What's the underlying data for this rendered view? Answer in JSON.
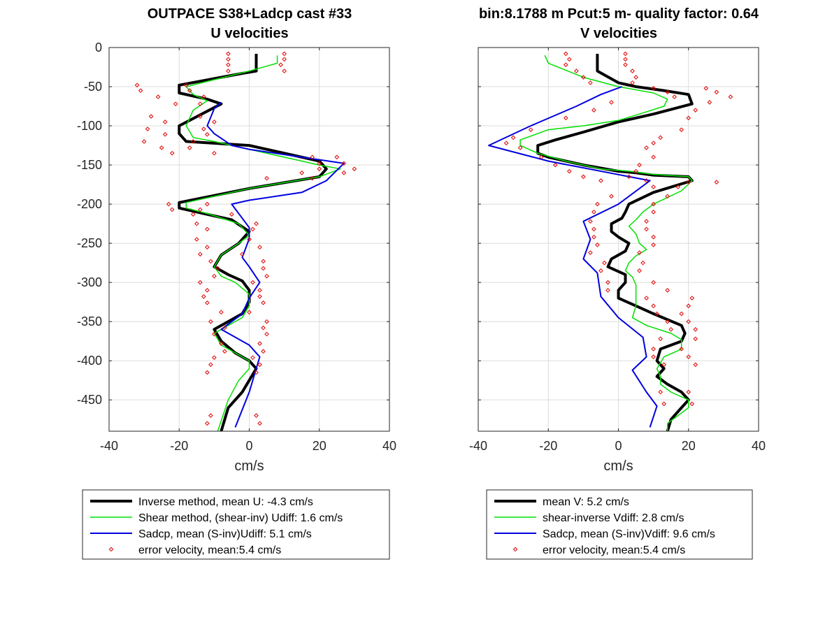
{
  "chart_data": [
    {
      "type": "line",
      "title": "OUTPACE S38+Ladcp cast #33",
      "subtitle": "U velocities",
      "xlabel": "cm/s",
      "ylabel": "",
      "xlim": [
        -40,
        40
      ],
      "ylim": [
        -490,
        0
      ],
      "xticks": [
        "-40",
        "-20",
        "0",
        "20",
        "40"
      ],
      "yticks": [
        "0",
        "-50",
        "-100",
        "-150",
        "-200",
        "-250",
        "-300",
        "-350",
        "-400",
        "-450"
      ],
      "grid": true,
      "legend_position": "below",
      "series": [
        {
          "name": "Inverse method, mean U:  -4.3 cm/s",
          "color": "#000000",
          "x": [
            2,
            2,
            -2,
            -20,
            -20,
            -12,
            -8,
            -20,
            -20,
            -18,
            0,
            20,
            22,
            20,
            0,
            -20,
            -20,
            -15,
            -5,
            0,
            -3,
            -8,
            -10,
            -6,
            -2,
            0,
            0,
            -2,
            -6,
            -10,
            -8,
            -4,
            0,
            2,
            0,
            -2,
            -6,
            -8
          ],
          "y": [
            -8,
            -30,
            -33,
            -48,
            -58,
            -66,
            -72,
            -100,
            -110,
            -120,
            -125,
            -145,
            -155,
            -165,
            -180,
            -198,
            -205,
            -210,
            -220,
            -235,
            -250,
            -265,
            -280,
            -290,
            -298,
            -310,
            -325,
            -340,
            -350,
            -360,
            -375,
            -390,
            -400,
            -410,
            -425,
            -440,
            -460,
            -490
          ]
        },
        {
          "name": "Shear method, (shear-inv)  Udiff:  1.6 cm/s",
          "color": "#00e000",
          "x": [
            8,
            8,
            0,
            -18,
            -16,
            -12,
            -16,
            -18,
            -16,
            -10,
            0,
            20,
            26,
            20,
            0,
            -18,
            -18,
            -12,
            -3,
            0,
            -3,
            -8,
            -10,
            -8,
            -4,
            0,
            0,
            -2,
            -6,
            -10,
            -8,
            -4,
            0,
            0,
            -3,
            -6,
            -9
          ],
          "y": [
            -10,
            -20,
            -30,
            -50,
            -60,
            -68,
            -80,
            -100,
            -115,
            -120,
            -130,
            -150,
            -155,
            -165,
            -180,
            -198,
            -205,
            -212,
            -225,
            -240,
            -250,
            -265,
            -280,
            -292,
            -300,
            -315,
            -330,
            -345,
            -355,
            -365,
            -380,
            -390,
            -400,
            -410,
            -425,
            -450,
            -490
          ]
        },
        {
          "name": "Sadcp, mean (S-inv)Udiff: 5.1 cm/s",
          "color": "#0000e0",
          "x": [
            -8,
            -10,
            -12,
            -10,
            -5,
            0,
            27,
            22,
            15,
            0,
            -5,
            0,
            0,
            -2,
            0,
            3,
            0,
            -2,
            -8,
            0,
            3,
            0,
            -4
          ],
          "y": [
            -70,
            -78,
            -100,
            -110,
            -125,
            -130,
            -148,
            -170,
            -185,
            -195,
            -200,
            -230,
            -244,
            -268,
            -280,
            -300,
            -320,
            -340,
            -360,
            -380,
            -395,
            -440,
            -485
          ]
        },
        {
          "name": "error velocity, mean:5.4 cm/s",
          "color": "#e00000",
          "marker": "diamond",
          "x": [
            -6,
            10,
            -6,
            10,
            -6,
            9,
            -6,
            10,
            -32,
            -18,
            -31,
            -17,
            -26,
            -13,
            -21,
            -14,
            -28,
            -14,
            -24,
            -10,
            -29,
            -13,
            -24,
            -12,
            -30,
            -16,
            -25,
            -17,
            -22,
            -10,
            25,
            18,
            27,
            20,
            30,
            20,
            27,
            15,
            18,
            5,
            -23,
            -12,
            -22,
            -14,
            -16,
            -5,
            -15,
            2,
            -12,
            1,
            -15,
            0,
            -12,
            3,
            -14,
            -2,
            -11,
            4,
            -9,
            4,
            -10,
            5,
            -14,
            1,
            -12,
            3,
            -13,
            3,
            -12,
            4,
            -8,
            0,
            -11,
            5,
            -7,
            4,
            -10,
            5,
            -8,
            3,
            -7,
            4,
            -10,
            1,
            -11,
            3,
            -12,
            2,
            -11,
            2,
            -12,
            3
          ],
          "y": [
            -8,
            -8,
            -15,
            -15,
            -22,
            -22,
            -30,
            -30,
            -48,
            -48,
            -55,
            -55,
            -63,
            -63,
            -72,
            -72,
            -88,
            -88,
            -95,
            -95,
            -104,
            -104,
            -111,
            -111,
            -120,
            -120,
            -128,
            -128,
            -135,
            -135,
            -140,
            -140,
            -148,
            -148,
            -155,
            -155,
            -160,
            -160,
            -167,
            -167,
            -200,
            -200,
            -207,
            -207,
            -213,
            -213,
            -225,
            -225,
            -232,
            -232,
            -245,
            -245,
            -255,
            -255,
            -264,
            -264,
            -273,
            -273,
            -282,
            -282,
            -292,
            -292,
            -300,
            -300,
            -310,
            -310,
            -318,
            -318,
            -326,
            -326,
            -338,
            -338,
            -350,
            -350,
            -358,
            -358,
            -366,
            -366,
            -378,
            -378,
            -388,
            -388,
            -396,
            -396,
            -405,
            -405,
            -415,
            -415,
            -470,
            -470,
            -480,
            -480
          ]
        }
      ]
    },
    {
      "type": "line",
      "title": "bin:8.1788 m  Pcut:5 m- quality factor:  0.64",
      "subtitle": "V velocities",
      "xlabel": "cm/s",
      "ylabel": "",
      "xlim": [
        -40,
        40
      ],
      "ylim": [
        -490,
        0
      ],
      "xticks": [
        "-40",
        "-20",
        "0",
        "20",
        "40"
      ],
      "yticks": [],
      "grid": true,
      "legend_position": "below",
      "series": [
        {
          "name": "mean V:  5.2 cm/s",
          "color": "#000000",
          "x": [
            -6,
            -6,
            0,
            5,
            13,
            20,
            21,
            10,
            0,
            -10,
            -18,
            -23,
            -23,
            -20,
            -10,
            0,
            5,
            10,
            20,
            21,
            10,
            3,
            2,
            1,
            -2,
            -2,
            0,
            3,
            2,
            -2,
            -3,
            2,
            2,
            0,
            0,
            5,
            10,
            18,
            19,
            18,
            12,
            11,
            13,
            11,
            14,
            18,
            20,
            18,
            15,
            14
          ],
          "y": [
            -8,
            -30,
            -45,
            -50,
            -55,
            -60,
            -72,
            -85,
            -95,
            -108,
            -118,
            -125,
            -135,
            -140,
            -150,
            -158,
            -160,
            -163,
            -165,
            -170,
            -185,
            -200,
            -210,
            -218,
            -225,
            -235,
            -242,
            -250,
            -260,
            -270,
            -280,
            -290,
            -300,
            -310,
            -320,
            -330,
            -340,
            -355,
            -365,
            -375,
            -385,
            -400,
            -410,
            -420,
            -430,
            -440,
            -450,
            -460,
            -475,
            -490
          ]
        },
        {
          "name": "shear-inverse Vdiff:  2.8 cm/s",
          "color": "#00e000",
          "x": [
            -21,
            -20,
            -10,
            0,
            10,
            14,
            13,
            6,
            0,
            -10,
            -20,
            -28,
            -28,
            -23,
            -15,
            -5,
            3,
            10,
            20,
            21,
            18,
            10,
            7,
            5,
            3,
            5,
            6,
            8,
            5,
            3,
            2,
            4,
            5,
            5,
            5,
            4,
            8,
            15,
            18,
            18,
            13,
            11,
            12,
            12,
            15,
            20,
            20,
            17,
            14,
            14
          ],
          "y": [
            -10,
            -20,
            -38,
            -50,
            -58,
            -66,
            -75,
            -85,
            -93,
            -100,
            -105,
            -118,
            -125,
            -135,
            -145,
            -155,
            -158,
            -162,
            -165,
            -170,
            -183,
            -200,
            -210,
            -220,
            -228,
            -238,
            -250,
            -258,
            -266,
            -275,
            -285,
            -293,
            -303,
            -315,
            -330,
            -345,
            -355,
            -365,
            -373,
            -385,
            -395,
            -410,
            -420,
            -430,
            -440,
            -450,
            -460,
            -470,
            -480,
            -490
          ]
        },
        {
          "name": "Sadcp, mean (S-inv)Vdiff: 9.6 cm/s",
          "color": "#0000e0",
          "x": [
            1,
            -5,
            -12,
            -25,
            -37,
            -20,
            9,
            0,
            -10,
            -8,
            -10,
            -6,
            -5,
            0,
            7,
            8,
            4,
            8,
            11,
            9
          ],
          "y": [
            -50,
            -60,
            -75,
            -100,
            -125,
            -145,
            -170,
            -200,
            -222,
            -245,
            -270,
            -288,
            -318,
            -345,
            -370,
            -395,
            -412,
            -440,
            -458,
            -485
          ]
        },
        {
          "name": "error velocity, mean:5.4 cm/s",
          "color": "#e00000",
          "marker": "diamond",
          "x": [
            -15,
            2,
            -14,
            2,
            -15,
            2,
            -12,
            4,
            -10,
            5,
            -8,
            4,
            10,
            25,
            14,
            28,
            16,
            32,
            -2,
            26,
            -7,
            22,
            -15,
            20,
            -25,
            18,
            -30,
            12,
            -32,
            10,
            -28,
            8,
            -22,
            10,
            -18,
            6,
            -14,
            5,
            -10,
            3,
            -5,
            8,
            20,
            28,
            10,
            17,
            -2,
            14,
            -6,
            10,
            -7,
            10,
            -8,
            8,
            -7,
            8,
            -7,
            10,
            -6,
            10,
            -8,
            6,
            -4,
            7,
            -5,
            6,
            -3,
            10,
            -3,
            14,
            8,
            21,
            10,
            20,
            11,
            18,
            14,
            20,
            15,
            22,
            12,
            22,
            10,
            18,
            10,
            20,
            13,
            22,
            12,
            20,
            13,
            21
          ],
          "y": [
            -8,
            -8,
            -15,
            -15,
            -22,
            -22,
            -30,
            -30,
            -38,
            -38,
            -45,
            -45,
            -52,
            -52,
            -57,
            -57,
            -63,
            -63,
            -70,
            -70,
            -80,
            -80,
            -90,
            -90,
            -105,
            -105,
            -115,
            -115,
            -122,
            -122,
            -128,
            -128,
            -140,
            -140,
            -150,
            -150,
            -158,
            -158,
            -165,
            -165,
            -170,
            -170,
            -172,
            -172,
            -178,
            -178,
            -190,
            -190,
            -200,
            -200,
            -210,
            -210,
            -222,
            -222,
            -232,
            -232,
            -242,
            -242,
            -252,
            -252,
            -262,
            -262,
            -275,
            -275,
            -285,
            -285,
            -300,
            -300,
            -310,
            -310,
            -320,
            -320,
            -330,
            -330,
            -340,
            -340,
            -350,
            -350,
            -360,
            -360,
            -372,
            -372,
            -385,
            -385,
            -395,
            -395,
            -405,
            -405,
            -440,
            -440,
            -455,
            -455
          ]
        }
      ]
    }
  ]
}
